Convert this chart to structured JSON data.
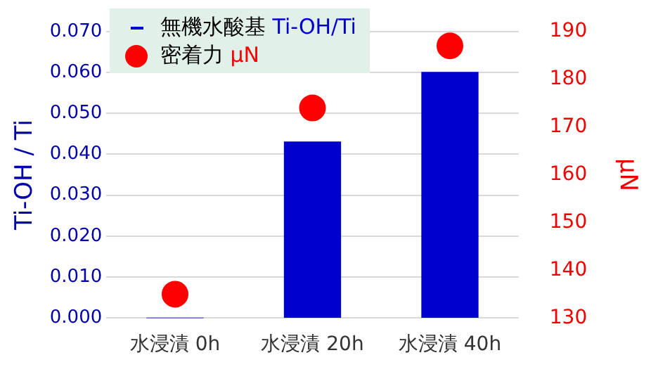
{
  "chart_data": {
    "type": "bar",
    "categories": [
      "水浸漬 0h",
      "水浸漬 20h",
      "水浸漬 40h"
    ],
    "series": [
      {
        "name": "無機水酸基 Ti-OH/Ti",
        "color": "#0000cc",
        "values": [
          0,
          0.043,
          0.06
        ]
      },
      {
        "name": "密着力 μN",
        "type": "scatter",
        "axis": "y2",
        "color": "#ff0000",
        "values": [
          135,
          174,
          187
        ]
      }
    ],
    "ylabel": "Ti-OH / Ti",
    "y2label": "μN",
    "ylim": [
      0,
      0.07
    ],
    "yticks": [
      {
        "value": 0,
        "label": "0.000"
      },
      {
        "value": 0.01,
        "label": "0.010"
      },
      {
        "value": 0.02,
        "label": "0.020"
      },
      {
        "value": 0.03,
        "label": "0.030"
      },
      {
        "value": 0.04,
        "label": "0.040"
      },
      {
        "value": 0.05,
        "label": "0.050"
      },
      {
        "value": 0.06,
        "label": "0.060"
      },
      {
        "value": 0.07,
        "label": "0.070"
      }
    ],
    "y2lim": [
      130,
      190
    ],
    "y2ticks": [
      130,
      140,
      150,
      160,
      170,
      180,
      190
    ],
    "grid": "y",
    "legend": "top left",
    "marker": "circle"
  }
}
